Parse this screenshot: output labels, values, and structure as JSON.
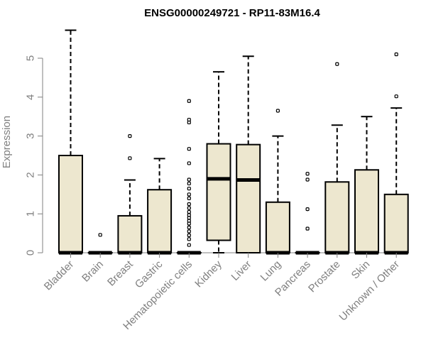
{
  "chart_data": {
    "type": "box",
    "title": "ENSG00000249721 - RP11-83M16.4",
    "ylabel": "Expression",
    "xlabel": "",
    "ylim": [
      0,
      5.7
    ],
    "yticks": [
      0,
      1,
      2,
      3,
      4,
      5
    ],
    "categories": [
      "Bladder",
      "Brain",
      "Breast",
      "Gastric",
      "Hematopoietic cells",
      "Kidney",
      "Liver",
      "Lung",
      "Pancreas",
      "Prostate",
      "Skin",
      "Unknown / Other"
    ],
    "box_fill": "#ede7cf",
    "boxes": [
      {
        "category": "Bladder",
        "q1": 0,
        "median": 0,
        "q3": 2.5,
        "lower_whisker": 0,
        "upper_whisker": 5.72,
        "outliers": []
      },
      {
        "category": "Brain",
        "q1": 0,
        "median": 0,
        "q3": 0,
        "lower_whisker": 0,
        "upper_whisker": 0,
        "outliers": [
          0.46
        ]
      },
      {
        "category": "Breast",
        "q1": 0,
        "median": 0,
        "q3": 0.95,
        "lower_whisker": 0,
        "upper_whisker": 1.87,
        "outliers": [
          2.43,
          3.0
        ]
      },
      {
        "category": "Gastric",
        "q1": 0,
        "median": 0,
        "q3": 1.62,
        "lower_whisker": 0,
        "upper_whisker": 2.42,
        "outliers": []
      },
      {
        "category": "Hematopoietic cells",
        "q1": 0,
        "median": 0,
        "q3": 0,
        "lower_whisker": 0,
        "upper_whisker": 0,
        "outliers": [
          0.2,
          0.35,
          0.45,
          0.55,
          0.65,
          0.75,
          0.82,
          0.9,
          0.97,
          1.05,
          1.15,
          1.25,
          1.4,
          1.5,
          1.65,
          1.78,
          1.88,
          2.3,
          2.67,
          3.35,
          3.42,
          3.9
        ]
      },
      {
        "category": "Kidney",
        "q1": 0.32,
        "median": 1.9,
        "q3": 2.8,
        "lower_whisker": 0,
        "upper_whisker": 4.65,
        "outliers": []
      },
      {
        "category": "Liver",
        "q1": 0,
        "median": 1.87,
        "q3": 2.78,
        "lower_whisker": 0,
        "upper_whisker": 5.05,
        "outliers": []
      },
      {
        "category": "Lung",
        "q1": 0,
        "median": 0,
        "q3": 1.3,
        "lower_whisker": 0,
        "upper_whisker": 3.0,
        "outliers": [
          3.65
        ]
      },
      {
        "category": "Pancreas",
        "q1": 0,
        "median": 0,
        "q3": 0,
        "lower_whisker": 0,
        "upper_whisker": 0,
        "outliers": [
          0.62,
          1.12,
          1.88,
          2.03
        ]
      },
      {
        "category": "Prostate",
        "q1": 0,
        "median": 0,
        "q3": 1.82,
        "lower_whisker": 0,
        "upper_whisker": 3.28,
        "outliers": [
          4.85
        ]
      },
      {
        "category": "Skin",
        "q1": 0,
        "median": 0,
        "q3": 2.13,
        "lower_whisker": 0,
        "upper_whisker": 3.5,
        "outliers": []
      },
      {
        "category": "Unknown / Other",
        "q1": 0,
        "median": 0,
        "q3": 1.5,
        "lower_whisker": 0,
        "upper_whisker": 3.72,
        "outliers": [
          4.02,
          5.1
        ]
      }
    ]
  }
}
